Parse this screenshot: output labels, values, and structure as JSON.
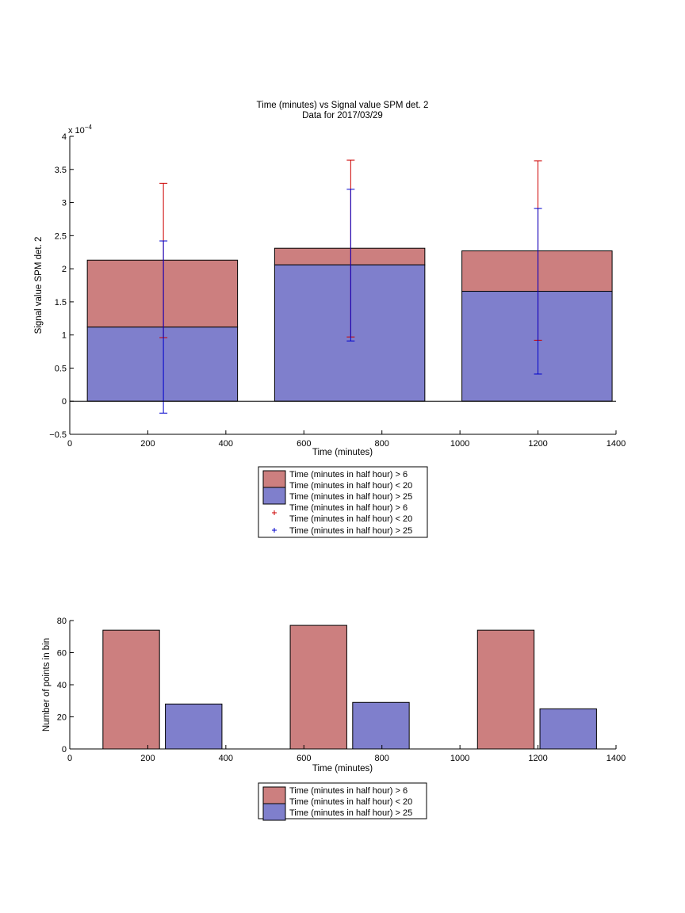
{
  "figure": {
    "title_line1": "Time (minutes) vs Signal value SPM det. 2",
    "title_line2": "Data for 2017/03/29"
  },
  "colors": {
    "red_fill": "#cc7f7f",
    "blue_fill": "#7f7fcc",
    "red_err": "#cc0000",
    "blue_err": "#0000cc",
    "axis": "#000000"
  },
  "chart_data": [
    {
      "type": "bar",
      "stacked": true,
      "title": "Time (minutes) vs Signal value SPM det. 2",
      "subtitle": "Data for 2017/03/29",
      "xlabel": "Time (minutes)",
      "ylabel": "Signal value SPM det. 2",
      "y_exponent": "x 10",
      "y_exponent_power": "−4",
      "xlim": [
        0,
        1400
      ],
      "ylim": [
        -0.5,
        4
      ],
      "xticks": [
        0,
        200,
        400,
        600,
        800,
        1000,
        1200,
        1400
      ],
      "yticks": [
        -0.5,
        0,
        0.5,
        1,
        1.5,
        2,
        2.5,
        3,
        3.5,
        4
      ],
      "ytick_labels": [
        "−0.5",
        "0",
        "0.5",
        "1",
        "1.5",
        "2",
        "2.5",
        "3",
        "3.5",
        "4"
      ],
      "bars": [
        {
          "x_start": 45,
          "x_end": 430,
          "blue_top": 1.12,
          "total_top": 2.13
        },
        {
          "x_start": 525,
          "x_end": 910,
          "blue_top": 2.06,
          "total_top": 2.31
        },
        {
          "x_start": 1005,
          "x_end": 1390,
          "blue_top": 1.66,
          "total_top": 2.27
        }
      ],
      "error_bars": [
        {
          "series": "red",
          "x": 240,
          "low": 0.96,
          "high": 3.29
        },
        {
          "series": "blue",
          "x": 240,
          "low": -0.18,
          "high": 2.42
        },
        {
          "series": "red",
          "x": 720,
          "low": 0.97,
          "high": 3.64
        },
        {
          "series": "blue",
          "x": 720,
          "low": 0.91,
          "high": 3.2
        },
        {
          "series": "red",
          "x": 1200,
          "low": 0.92,
          "high": 3.63
        },
        {
          "series": "blue",
          "x": 1200,
          "low": 0.41,
          "high": 2.91
        }
      ],
      "legend": [
        {
          "kind": "patch",
          "color": "red",
          "label_line1": "Time (minutes in half hour) > 6",
          "label_line2": "Time (minutes in half hour) < 20"
        },
        {
          "kind": "patch",
          "color": "blue",
          "label_line1": "Time (minutes in half hour) > 25"
        },
        {
          "kind": "marker",
          "color": "red",
          "label_line1": "Time (minutes in half hour) > 6",
          "label_line2": "Time (minutes in half hour) < 20"
        },
        {
          "kind": "marker",
          "color": "blue",
          "label_line1": "Time (minutes in half hour) > 25"
        }
      ]
    },
    {
      "type": "bar",
      "xlabel": "Time (minutes)",
      "ylabel": "Number of points in bin",
      "xlim": [
        0,
        1400
      ],
      "ylim": [
        0,
        80
      ],
      "xticks": [
        0,
        200,
        400,
        600,
        800,
        1000,
        1200,
        1400
      ],
      "yticks": [
        0,
        20,
        40,
        60,
        80
      ],
      "bars": [
        {
          "series": "red",
          "x_start": 85,
          "x_end": 230,
          "value": 74
        },
        {
          "series": "blue",
          "x_start": 245,
          "x_end": 390,
          "value": 28
        },
        {
          "series": "red",
          "x_start": 565,
          "x_end": 710,
          "value": 77
        },
        {
          "series": "blue",
          "x_start": 725,
          "x_end": 870,
          "value": 29
        },
        {
          "series": "red",
          "x_start": 1045,
          "x_end": 1190,
          "value": 74
        },
        {
          "series": "blue",
          "x_start": 1205,
          "x_end": 1350,
          "value": 25
        }
      ],
      "legend": [
        {
          "kind": "patch",
          "color": "red",
          "label_line1": "Time (minutes in half hour) > 6",
          "label_line2": "Time (minutes in half hour) < 20"
        },
        {
          "kind": "patch",
          "color": "blue",
          "label_line1": "Time (minutes in half hour) > 25"
        }
      ]
    }
  ]
}
